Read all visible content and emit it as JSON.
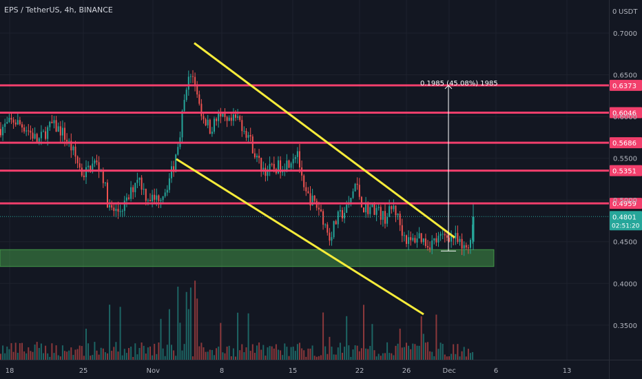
{
  "header": {
    "symbol_title": "EPS / TetherUS, 4h, BINANCE",
    "currency": "USDT",
    "currency_zero": "0"
  },
  "chart_data": {
    "type": "candlestick",
    "title": "EPS / TetherUS, 4h, BINANCE",
    "ylim": [
      0.3086,
      0.7396
    ],
    "y_ticks": [
      "0.7000",
      "0.6500",
      "0.6000",
      "0.5500",
      "0.5000",
      "0.4500",
      "0.4000",
      "0.3500"
    ],
    "x_ticks": [
      "18",
      "25",
      "Nov",
      "8",
      "15",
      "22",
      "26",
      "Dec",
      "6",
      "13"
    ],
    "horizontal_levels": [
      {
        "label": "0.6373",
        "value": 0.6373
      },
      {
        "label": "0.6046",
        "value": 0.6046
      },
      {
        "label": "0.5686",
        "value": 0.5686
      },
      {
        "label": "0.5351",
        "value": 0.5351
      },
      {
        "label": "0.4959",
        "value": 0.4959
      }
    ],
    "current_price": {
      "label": "0.4801",
      "value": 0.4801,
      "countdown": "02:51:20"
    },
    "support_zone": {
      "from": 0.4203,
      "to": 0.4405
    },
    "measure_annotation": "0.1985 (45.08%) 1985",
    "trendlines": [
      "upper descending",
      "lower descending"
    ],
    "colors": {
      "background": "#131722",
      "up": "#26a69a",
      "down": "#ef5350",
      "level": "#f23f6c",
      "trendline": "#f7ec3a",
      "zone": "#4caf50",
      "price_label": "#26a69a"
    }
  }
}
